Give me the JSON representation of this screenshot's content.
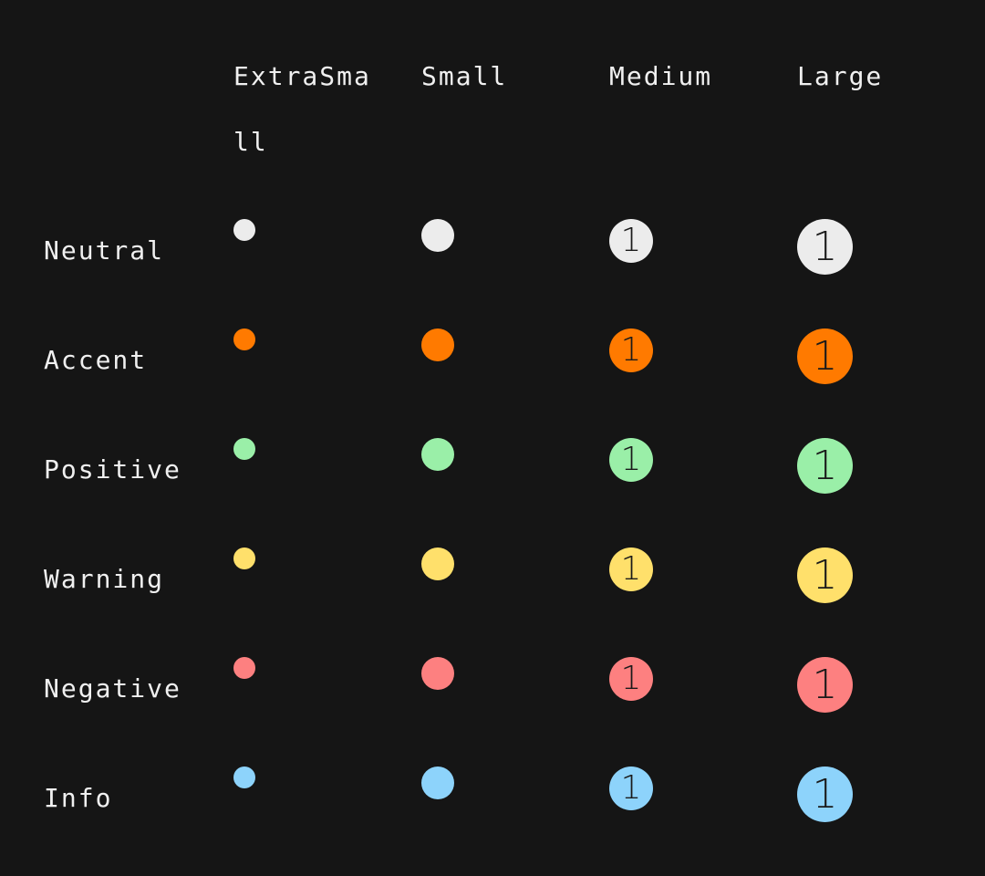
{
  "columns": [
    "ExtraSmall",
    "Small",
    "Medium",
    "Large"
  ],
  "rows": [
    {
      "label": "Neutral",
      "color": "#ececec"
    },
    {
      "label": "Accent",
      "color": "#ff7a00"
    },
    {
      "label": "Positive",
      "color": "#9aefa8"
    },
    {
      "label": "Warning",
      "color": "#ffe06b"
    },
    {
      "label": "Negative",
      "color": "#fd8080"
    },
    {
      "label": "Info",
      "color": "#8dd3fb"
    }
  ],
  "badge_value": "1",
  "colors": {
    "background": "#151515",
    "text": "#f0f0f0",
    "badge_text": "#1a1a1a"
  }
}
